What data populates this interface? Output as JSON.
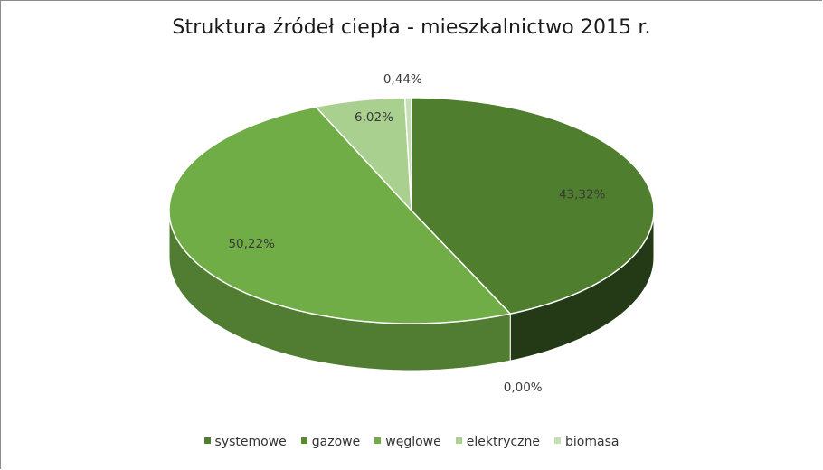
{
  "chart_data": {
    "type": "pie",
    "title": "Struktura źródeł ciepła - mieszkalnictwo 2015 r.",
    "categories": [
      "systemowe",
      "gazowe",
      "węglowe",
      "elektryczne",
      "biomasa"
    ],
    "values": [
      43.32,
      0.0,
      50.22,
      6.02,
      0.44
    ],
    "data_labels": [
      "43,32%",
      "0,00%",
      "50,22%",
      "6,02%",
      "0,44%"
    ],
    "colors": [
      "#4f7f2e",
      "#568a33",
      "#70ad47",
      "#a9d08e",
      "#c5e0b4"
    ],
    "legend_position": "bottom",
    "three_d": true
  }
}
